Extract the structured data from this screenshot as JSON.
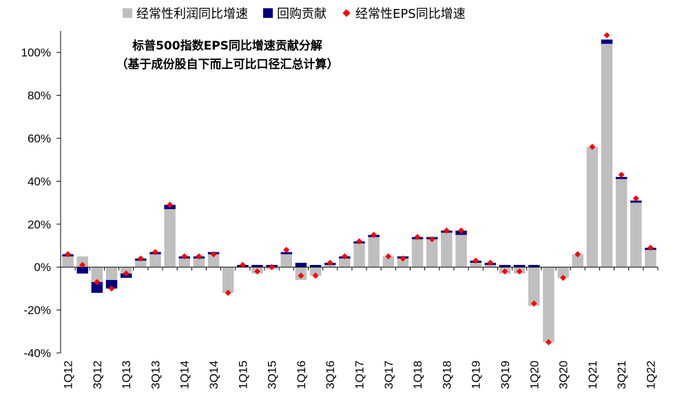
{
  "chart_data": {
    "type": "bar",
    "title": "标普500指数EPS同比增速贡献分解",
    "subtitle": "（基于成份股自下而上可比口径汇总计算）",
    "legend": [
      {
        "name": "经常性利润同比增速",
        "marker": "square",
        "color": "#bfbfbf"
      },
      {
        "name": "回购贡献",
        "marker": "square",
        "color": "#000080"
      },
      {
        "name": "经常性EPS同比增速",
        "marker": "diamond",
        "color": "#ff0000"
      }
    ],
    "legend_position": "top",
    "ylim": [
      -40,
      110
    ],
    "yticks": [
      "100%",
      "80%",
      "60%",
      "40%",
      "20%",
      "0%",
      "-20%",
      "-40%"
    ],
    "ytick_values": [
      100,
      80,
      60,
      40,
      20,
      0,
      -20,
      -40
    ],
    "categories": [
      "1Q12",
      "2Q12",
      "3Q12",
      "4Q12",
      "1Q13",
      "2Q13",
      "3Q13",
      "4Q13",
      "1Q14",
      "2Q14",
      "3Q14",
      "4Q14",
      "1Q15",
      "2Q15",
      "3Q15",
      "4Q15",
      "1Q16",
      "2Q16",
      "3Q16",
      "4Q16",
      "1Q17",
      "2Q17",
      "3Q17",
      "4Q17",
      "1Q18",
      "2Q18",
      "3Q18",
      "4Q18",
      "1Q19",
      "2Q19",
      "3Q19",
      "4Q19",
      "1Q20",
      "2Q20",
      "3Q20",
      "4Q20",
      "1Q21",
      "2Q21",
      "3Q21",
      "4Q21",
      "1Q22"
    ],
    "xtick_labels": [
      "1Q12",
      "3Q12",
      "1Q13",
      "3Q13",
      "1Q14",
      "3Q14",
      "1Q15",
      "3Q15",
      "1Q16",
      "3Q16",
      "1Q17",
      "3Q17",
      "1Q18",
      "3Q18",
      "1Q19",
      "3Q19",
      "1Q20",
      "3Q20",
      "1Q21",
      "3Q21",
      "1Q22"
    ],
    "series": [
      {
        "name": "经常性利润同比增速",
        "type": "bar",
        "values": [
          5,
          5,
          -7,
          -6,
          -3,
          3,
          6,
          27,
          4,
          4,
          6,
          -12,
          0,
          -3,
          -1,
          6,
          -6,
          -4,
          1,
          4,
          11,
          14,
          5,
          4,
          13,
          13,
          16,
          15,
          2,
          1,
          -3,
          -3,
          -18,
          -35,
          -5,
          6,
          56,
          104,
          41,
          30,
          8
        ]
      },
      {
        "name": "回购贡献",
        "type": "bar",
        "values": [
          1,
          -3,
          -5,
          -4,
          -2,
          1,
          1,
          2,
          1,
          1,
          1,
          0,
          1,
          1,
          1,
          1,
          2,
          1,
          1,
          1,
          1,
          1,
          0,
          1,
          1,
          1,
          1,
          2,
          1,
          1,
          1,
          1,
          1,
          0,
          0,
          0,
          0,
          2,
          1,
          1,
          1
        ]
      },
      {
        "name": "经常性EPS同比增速",
        "type": "scatter",
        "values": [
          6,
          1,
          -7,
          -10,
          -3,
          4,
          7,
          29,
          5,
          5,
          6,
          -12,
          1,
          -2,
          0,
          8,
          -4,
          -4,
          2,
          5,
          12,
          15,
          5,
          4,
          14,
          13,
          17,
          17,
          3,
          2,
          -2,
          -2,
          -17,
          -35,
          -5,
          6,
          56,
          108,
          43,
          32,
          9
        ]
      }
    ],
    "grid": false
  }
}
